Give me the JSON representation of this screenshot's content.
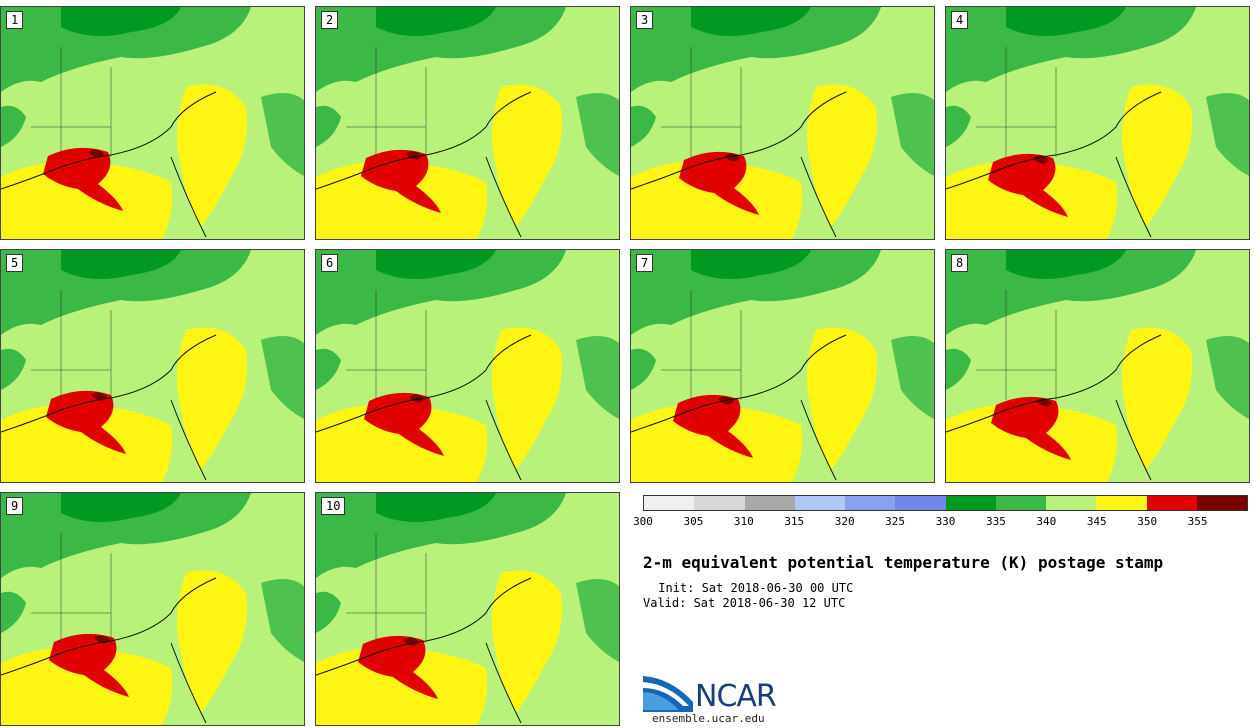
{
  "panels": [
    {
      "label": "1"
    },
    {
      "label": "2"
    },
    {
      "label": "3"
    },
    {
      "label": "4"
    },
    {
      "label": "5"
    },
    {
      "label": "6"
    },
    {
      "label": "7"
    },
    {
      "label": "8"
    },
    {
      "label": "9"
    },
    {
      "label": "10"
    }
  ],
  "colorbar": {
    "colors": [
      "#f0f0f0",
      "#d8d8d8",
      "#a8a8a8",
      "#b0c8f8",
      "#8aa0f0",
      "#6f88ea",
      "#009a22",
      "#3bb846",
      "#b8f27a",
      "#fff514",
      "#e00000",
      "#7a0000"
    ],
    "tick_labels": [
      "300",
      "305",
      "310",
      "315",
      "320",
      "325",
      "330",
      "335",
      "340",
      "345",
      "350",
      "355"
    ]
  },
  "map_colors": {
    "land": "#b8f27a",
    "forest": "#3bb846",
    "dark_green": "#009a22",
    "yellow": "#fff514",
    "red": "#e00000",
    "dark_red": "#7a0000"
  },
  "title": "2-m equivalent potential temperature (K) postage stamp",
  "init": " Init: Sat 2018-06-30 00 UTC",
  "valid": "Valid: Sat 2018-06-30 12 UTC",
  "logo": {
    "text": "NCAR",
    "subtext": "ensemble.ucar.edu"
  }
}
